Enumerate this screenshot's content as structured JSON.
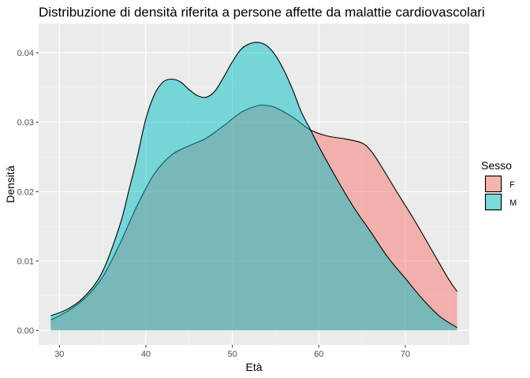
{
  "chart_data": {
    "type": "area",
    "title": "Distribuzione di densità riferita a persone affette da malattie cardiovascolari",
    "xlabel": "Età",
    "ylabel": "Densità",
    "xlim": [
      27.6,
      77.4
    ],
    "ylim": [
      -0.0021,
      0.0442
    ],
    "x_ticks": [
      30,
      40,
      50,
      60,
      70
    ],
    "y_ticks": [
      0.0,
      0.01,
      0.02,
      0.03,
      0.04
    ],
    "x_tick_labels": [
      "30",
      "40",
      "50",
      "60",
      "70"
    ],
    "y_tick_labels": [
      "0.00",
      "0.01",
      "0.02",
      "0.03",
      "0.04"
    ],
    "grid": true,
    "legend": {
      "title": "Sesso",
      "position": "right"
    },
    "series": [
      {
        "name": "F",
        "color": "#F8766D",
        "x": [
          29,
          31,
          33,
          35,
          37,
          39,
          41,
          43,
          45,
          47,
          49,
          51,
          53,
          54,
          55,
          57,
          59,
          61,
          63,
          65,
          66,
          67,
          69,
          71,
          73,
          75,
          76
        ],
        "y": [
          0.0015,
          0.0028,
          0.0047,
          0.0077,
          0.0125,
          0.018,
          0.0226,
          0.0253,
          0.0266,
          0.0277,
          0.0295,
          0.0314,
          0.0324,
          0.0324,
          0.0321,
          0.0307,
          0.0289,
          0.028,
          0.0276,
          0.027,
          0.0259,
          0.0241,
          0.02,
          0.016,
          0.0117,
          0.0074,
          0.0056
        ]
      },
      {
        "name": "M",
        "color": "#00BFC4",
        "x": [
          29,
          31,
          33,
          35,
          37,
          38,
          39,
          40,
          41,
          42,
          43,
          44,
          45,
          46,
          47,
          48,
          49,
          50,
          51,
          52,
          53,
          54,
          55,
          56,
          57,
          58,
          59,
          60,
          62,
          64,
          66,
          68,
          70,
          72,
          74,
          76
        ],
        "y": [
          0.0021,
          0.0031,
          0.005,
          0.0085,
          0.0152,
          0.02,
          0.025,
          0.0305,
          0.034,
          0.0358,
          0.0362,
          0.0358,
          0.0347,
          0.0338,
          0.0336,
          0.0345,
          0.0365,
          0.0387,
          0.0405,
          0.0413,
          0.0415,
          0.041,
          0.0396,
          0.0374,
          0.0346,
          0.0314,
          0.029,
          0.0265,
          0.022,
          0.0178,
          0.0142,
          0.0105,
          0.0075,
          0.0045,
          0.002,
          0.0004
        ]
      }
    ]
  }
}
